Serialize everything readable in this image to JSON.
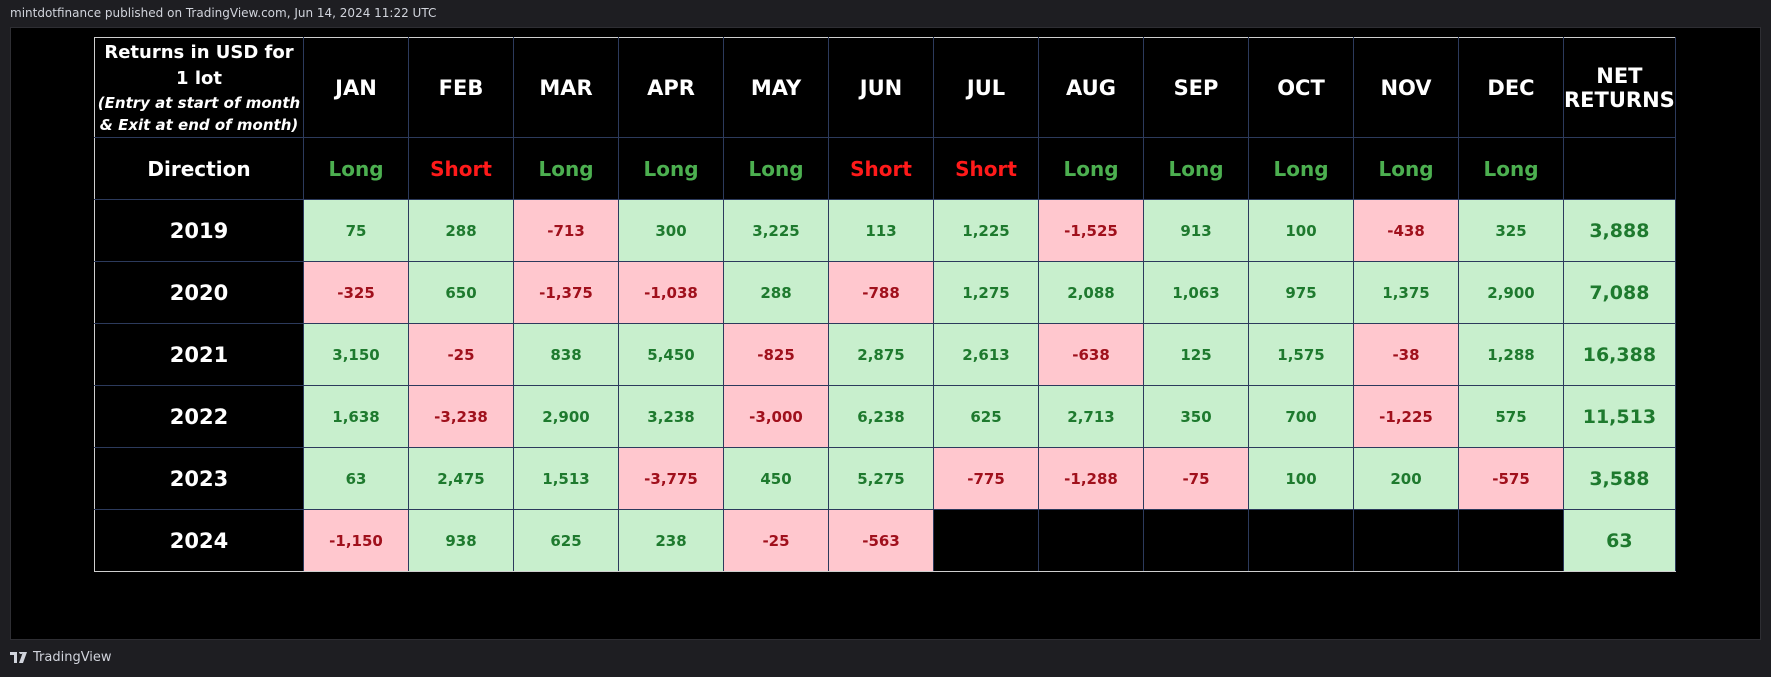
{
  "header": {
    "text": "mintdotfinance published on TradingView.com, Jun 14, 2024 11:22 UTC"
  },
  "footer": {
    "text": "TradingView"
  },
  "table": {
    "corner_title": "Returns in USD for 1 lot",
    "corner_subtitle": "(Entry at start of month & Exit at end of month)",
    "columns": [
      "JAN",
      "FEB",
      "MAR",
      "APR",
      "MAY",
      "JUN",
      "JUL",
      "AUG",
      "SEP",
      "OCT",
      "NOV",
      "DEC"
    ],
    "net_header": "NET RETURNS",
    "direction_label": "Direction",
    "directions": [
      {
        "text": "Long",
        "color": "#4caf50"
      },
      {
        "text": "Short",
        "color": "#ff1a1a"
      },
      {
        "text": "Long",
        "color": "#4caf50"
      },
      {
        "text": "Long",
        "color": "#4caf50"
      },
      {
        "text": "Long",
        "color": "#4caf50"
      },
      {
        "text": "Short",
        "color": "#ff1a1a"
      },
      {
        "text": "Short",
        "color": "#ff1a1a"
      },
      {
        "text": "Long",
        "color": "#4caf50"
      },
      {
        "text": "Long",
        "color": "#4caf50"
      },
      {
        "text": "Long",
        "color": "#4caf50"
      },
      {
        "text": "Long",
        "color": "#4caf50"
      },
      {
        "text": "Long",
        "color": "#4caf50"
      }
    ],
    "colors": {
      "positive_bg": "#c8efcd",
      "positive_text": "#1e7a2e",
      "negative_bg": "#ffc7ce",
      "negative_text": "#a0101c",
      "empty_bg": "#000000"
    },
    "rows": [
      {
        "year": "2019",
        "values": [
          "75",
          "288",
          "-713",
          "300",
          "3,225",
          "113",
          "1,225",
          "-1,525",
          "913",
          "100",
          "-438",
          "325"
        ],
        "net": "3,888"
      },
      {
        "year": "2020",
        "values": [
          "-325",
          "650",
          "-1,375",
          "-1,038",
          "288",
          "-788",
          "1,275",
          "2,088",
          "1,063",
          "975",
          "1,375",
          "2,900"
        ],
        "net": "7,088"
      },
      {
        "year": "2021",
        "values": [
          "3,150",
          "-25",
          "838",
          "5,450",
          "-825",
          "2,875",
          "2,613",
          "-638",
          "125",
          "1,575",
          "-38",
          "1,288"
        ],
        "net": "16,388"
      },
      {
        "year": "2022",
        "values": [
          "1,638",
          "-3,238",
          "2,900",
          "3,238",
          "-3,000",
          "6,238",
          "625",
          "2,713",
          "350",
          "700",
          "-1,225",
          "575"
        ],
        "net": "11,513"
      },
      {
        "year": "2023",
        "values": [
          "63",
          "2,475",
          "1,513",
          "-3,775",
          "450",
          "5,275",
          "-775",
          "-1,288",
          "-75",
          "100",
          "200",
          "-575"
        ],
        "net": "3,588"
      },
      {
        "year": "2024",
        "values": [
          "-1,150",
          "938",
          "625",
          "238",
          "-25",
          "-563",
          null,
          null,
          null,
          null,
          null,
          null
        ],
        "net": "63"
      }
    ]
  }
}
